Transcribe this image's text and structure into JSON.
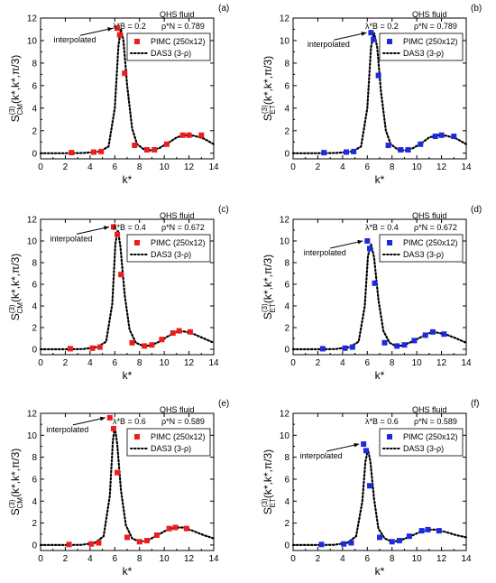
{
  "colors": {
    "red": "#ee1c1c",
    "blue": "#1c2bdd",
    "line": "#000000"
  },
  "figure": {
    "x_label": "k*",
    "annotation": "interpolated"
  },
  "chart_data": [
    {
      "type": "scatter",
      "panel": "(a)",
      "color": "red",
      "fluid_label": "QHS fluid",
      "lambda_text": "λ*B = 0.2",
      "rho_text": "ρ*N = 0.789",
      "ylabel_main": "S",
      "ylabel_sup": "(3)",
      "ylabel_sub": "CM",
      "ylabel_rest": "(k*,k*,π/3)",
      "xlabel": "k*",
      "xlim": [
        0,
        14
      ],
      "ylim": [
        -0.5,
        12
      ],
      "xticks": [
        0,
        2,
        4,
        6,
        8,
        10,
        12,
        14
      ],
      "yticks": [
        0,
        2,
        4,
        6,
        8,
        10,
        12
      ],
      "legend": "top-right",
      "series": [
        {
          "name": "PIMC (250x12)",
          "kind": "markers",
          "points": [
            [
              2.5,
              0.05
            ],
            [
              4.3,
              0.1
            ],
            [
              4.9,
              0.15
            ],
            [
              6.2,
              11.1
            ],
            [
              6.4,
              10.5
            ],
            [
              6.8,
              7.1
            ],
            [
              7.6,
              0.7
            ],
            [
              8.6,
              0.3
            ],
            [
              9.2,
              0.3
            ],
            [
              10.2,
              0.8
            ],
            [
              11.5,
              1.6
            ],
            [
              12.0,
              1.6
            ],
            [
              13.0,
              1.6
            ]
          ]
        },
        {
          "name": "DAS3 (3-ρ)",
          "kind": "dotted-line",
          "points": [
            [
              0,
              0
            ],
            [
              2,
              0
            ],
            [
              3.5,
              0.02
            ],
            [
              4.8,
              0.15
            ],
            [
              5.5,
              0.6
            ],
            [
              6.0,
              4.0
            ],
            [
              6.3,
              9.6
            ],
            [
              6.5,
              11.0
            ],
            [
              6.7,
              10.0
            ],
            [
              7.0,
              6.0
            ],
            [
              7.4,
              2.2
            ],
            [
              7.8,
              0.8
            ],
            [
              8.4,
              0.3
            ],
            [
              9.0,
              0.25
            ],
            [
              9.6,
              0.45
            ],
            [
              10.3,
              0.9
            ],
            [
              11.0,
              1.4
            ],
            [
              11.6,
              1.6
            ],
            [
              12.4,
              1.55
            ],
            [
              13.2,
              1.3
            ],
            [
              14.0,
              0.8
            ]
          ]
        }
      ]
    },
    {
      "type": "scatter",
      "panel": "(b)",
      "color": "blue",
      "fluid_label": "QHS fluid",
      "lambda_text": "λ*B = 0.2",
      "rho_text": "ρ*N = 0.789",
      "ylabel_main": "S",
      "ylabel_sup": "(3)",
      "ylabel_sub": "ET",
      "ylabel_rest": "(k*,k*,π/3)",
      "xlabel": "k*",
      "xlim": [
        0,
        14
      ],
      "ylim": [
        -0.5,
        12
      ],
      "xticks": [
        0,
        2,
        4,
        6,
        8,
        10,
        12,
        14
      ],
      "yticks": [
        0,
        2,
        4,
        6,
        8,
        10,
        12
      ],
      "legend": "top-right",
      "series": [
        {
          "name": "PIMC (250x12)",
          "kind": "markers",
          "points": [
            [
              2.5,
              0.05
            ],
            [
              4.3,
              0.1
            ],
            [
              4.9,
              0.15
            ],
            [
              6.3,
              10.7
            ],
            [
              6.5,
              10.1
            ],
            [
              6.9,
              6.9
            ],
            [
              7.7,
              0.7
            ],
            [
              8.7,
              0.3
            ],
            [
              9.3,
              0.3
            ],
            [
              10.3,
              0.8
            ],
            [
              11.5,
              1.5
            ],
            [
              12.0,
              1.6
            ],
            [
              13.0,
              1.5
            ]
          ]
        },
        {
          "name": "DAS3 (3-ρ)",
          "kind": "dotted-line",
          "points": [
            [
              0,
              0
            ],
            [
              2,
              0
            ],
            [
              3.5,
              0.02
            ],
            [
              4.8,
              0.15
            ],
            [
              5.5,
              0.6
            ],
            [
              6.0,
              4.0
            ],
            [
              6.3,
              9.4
            ],
            [
              6.55,
              10.7
            ],
            [
              6.8,
              9.4
            ],
            [
              7.1,
              5.5
            ],
            [
              7.5,
              2.0
            ],
            [
              7.9,
              0.8
            ],
            [
              8.5,
              0.3
            ],
            [
              9.1,
              0.25
            ],
            [
              9.7,
              0.45
            ],
            [
              10.4,
              0.9
            ],
            [
              11.0,
              1.4
            ],
            [
              11.7,
              1.6
            ],
            [
              12.4,
              1.55
            ],
            [
              13.2,
              1.3
            ],
            [
              14.0,
              0.8
            ]
          ]
        }
      ]
    },
    {
      "type": "scatter",
      "panel": "(c)",
      "color": "red",
      "fluid_label": "QHS fluid",
      "lambda_text": "λ*B = 0.4",
      "rho_text": "ρ*N = 0.672",
      "ylabel_main": "S",
      "ylabel_sup": "(3)",
      "ylabel_sub": "CM",
      "ylabel_rest": "(k*,k*,π/3)",
      "xlabel": "k*",
      "xlim": [
        0,
        14
      ],
      "ylim": [
        -0.5,
        12
      ],
      "xticks": [
        0,
        2,
        4,
        6,
        8,
        10,
        12,
        14
      ],
      "yticks": [
        0,
        2,
        4,
        6,
        8,
        10,
        12
      ],
      "legend": "top-right",
      "series": [
        {
          "name": "PIMC (250x12)",
          "kind": "markers",
          "points": [
            [
              2.4,
              0.05
            ],
            [
              4.2,
              0.1
            ],
            [
              4.8,
              0.2
            ],
            [
              5.9,
              11.3
            ],
            [
              6.2,
              10.6
            ],
            [
              6.5,
              6.9
            ],
            [
              7.4,
              0.6
            ],
            [
              8.4,
              0.3
            ],
            [
              9.0,
              0.4
            ],
            [
              9.8,
              0.9
            ],
            [
              10.7,
              1.5
            ],
            [
              11.2,
              1.7
            ],
            [
              12.1,
              1.6
            ]
          ]
        },
        {
          "name": "DAS3 (3-ρ)",
          "kind": "dotted-line",
          "points": [
            [
              0,
              0
            ],
            [
              2,
              0
            ],
            [
              3.4,
              0.02
            ],
            [
              4.6,
              0.2
            ],
            [
              5.3,
              0.7
            ],
            [
              5.8,
              4.2
            ],
            [
              6.05,
              9.8
            ],
            [
              6.25,
              11.0
            ],
            [
              6.45,
              9.5
            ],
            [
              6.8,
              5.0
            ],
            [
              7.2,
              1.8
            ],
            [
              7.7,
              0.6
            ],
            [
              8.3,
              0.3
            ],
            [
              8.9,
              0.35
            ],
            [
              9.6,
              0.7
            ],
            [
              10.3,
              1.2
            ],
            [
              11.0,
              1.6
            ],
            [
              11.6,
              1.65
            ],
            [
              12.4,
              1.4
            ],
            [
              13.2,
              1.0
            ],
            [
              14.0,
              0.6
            ]
          ]
        }
      ]
    },
    {
      "type": "scatter",
      "panel": "(d)",
      "color": "blue",
      "fluid_label": "QHS fluid",
      "lambda_text": "λ*B = 0.4",
      "rho_text": "ρ*N = 0.672",
      "ylabel_main": "S",
      "ylabel_sup": "(3)",
      "ylabel_sub": "ET",
      "ylabel_rest": "(k*,k*,π/3)",
      "xlabel": "k*",
      "xlim": [
        0,
        14
      ],
      "ylim": [
        -0.5,
        12
      ],
      "xticks": [
        0,
        2,
        4,
        6,
        8,
        10,
        12,
        14
      ],
      "yticks": [
        0,
        2,
        4,
        6,
        8,
        10,
        12
      ],
      "legend": "top-right",
      "series": [
        {
          "name": "PIMC (250x12)",
          "kind": "markers",
          "points": [
            [
              2.4,
              0.05
            ],
            [
              4.2,
              0.1
            ],
            [
              4.8,
              0.2
            ],
            [
              6.0,
              10.0
            ],
            [
              6.2,
              9.3
            ],
            [
              6.6,
              6.1
            ],
            [
              7.4,
              0.6
            ],
            [
              8.4,
              0.3
            ],
            [
              9.0,
              0.4
            ],
            [
              9.8,
              0.8
            ],
            [
              10.7,
              1.3
            ],
            [
              11.3,
              1.6
            ],
            [
              12.2,
              1.4
            ]
          ]
        },
        {
          "name": "DAS3 (3-ρ)",
          "kind": "dotted-line",
          "points": [
            [
              0,
              0
            ],
            [
              2,
              0
            ],
            [
              3.4,
              0.02
            ],
            [
              4.6,
              0.2
            ],
            [
              5.3,
              0.7
            ],
            [
              5.8,
              4.0
            ],
            [
              6.05,
              8.6
            ],
            [
              6.3,
              9.7
            ],
            [
              6.55,
              8.5
            ],
            [
              6.9,
              4.6
            ],
            [
              7.3,
              1.7
            ],
            [
              7.8,
              0.6
            ],
            [
              8.3,
              0.3
            ],
            [
              8.9,
              0.35
            ],
            [
              9.6,
              0.7
            ],
            [
              10.3,
              1.1
            ],
            [
              11.0,
              1.5
            ],
            [
              11.6,
              1.55
            ],
            [
              12.4,
              1.35
            ],
            [
              13.2,
              1.0
            ],
            [
              14.0,
              0.6
            ]
          ]
        }
      ]
    },
    {
      "type": "scatter",
      "panel": "(e)",
      "color": "red",
      "fluid_label": "QHS fluid",
      "lambda_text": "λ*B = 0.6",
      "rho_text": "ρ*N = 0.589",
      "ylabel_main": "S",
      "ylabel_sup": "(3)",
      "ylabel_sub": "CM",
      "ylabel_rest": "(k*,k*,π/3)",
      "xlabel": "k*",
      "xlim": [
        0,
        14
      ],
      "ylim": [
        -0.5,
        12
      ],
      "xticks": [
        0,
        2,
        4,
        6,
        8,
        10,
        12,
        14
      ],
      "yticks": [
        0,
        2,
        4,
        6,
        8,
        10,
        12
      ],
      "legend": "top-right",
      "series": [
        {
          "name": "PIMC (250x12)",
          "kind": "markers",
          "points": [
            [
              2.3,
              0.05
            ],
            [
              4.1,
              0.1
            ],
            [
              4.7,
              0.2
            ],
            [
              5.6,
              11.6
            ],
            [
              5.9,
              10.6
            ],
            [
              6.2,
              6.6
            ],
            [
              7.0,
              0.7
            ],
            [
              8.0,
              0.3
            ],
            [
              8.6,
              0.4
            ],
            [
              9.4,
              0.9
            ],
            [
              10.4,
              1.5
            ],
            [
              10.9,
              1.6
            ],
            [
              11.8,
              1.5
            ]
          ]
        },
        {
          "name": "DAS3 (3-ρ)",
          "kind": "dotted-line",
          "points": [
            [
              0,
              0
            ],
            [
              2,
              0
            ],
            [
              3.3,
              0.02
            ],
            [
              4.4,
              0.2
            ],
            [
              5.1,
              0.8
            ],
            [
              5.6,
              4.5
            ],
            [
              5.85,
              9.5
            ],
            [
              6.0,
              10.8
            ],
            [
              6.2,
              9.2
            ],
            [
              6.5,
              5.0
            ],
            [
              6.9,
              1.8
            ],
            [
              7.4,
              0.6
            ],
            [
              8.0,
              0.3
            ],
            [
              8.6,
              0.4
            ],
            [
              9.3,
              0.8
            ],
            [
              10.1,
              1.3
            ],
            [
              10.8,
              1.6
            ],
            [
              11.5,
              1.6
            ],
            [
              12.3,
              1.3
            ],
            [
              13.2,
              0.9
            ],
            [
              14.0,
              0.6
            ]
          ]
        }
      ]
    },
    {
      "type": "scatter",
      "panel": "(f)",
      "color": "blue",
      "fluid_label": "QHS fluid",
      "lambda_text": "λ*B = 0.6",
      "rho_text": "ρ*N = 0.589",
      "ylabel_main": "S",
      "ylabel_sup": "(3)",
      "ylabel_sub": "ET",
      "ylabel_rest": "(k*,k*,π/3)",
      "xlabel": "k*",
      "xlim": [
        0,
        14
      ],
      "ylim": [
        -0.5,
        12
      ],
      "xticks": [
        0,
        2,
        4,
        6,
        8,
        10,
        12,
        14
      ],
      "yticks": [
        0,
        2,
        4,
        6,
        8,
        10,
        12
      ],
      "legend": "top-right",
      "series": [
        {
          "name": "PIMC (250x12)",
          "kind": "markers",
          "points": [
            [
              2.3,
              0.05
            ],
            [
              4.1,
              0.1
            ],
            [
              4.7,
              0.2
            ],
            [
              5.7,
              9.2
            ],
            [
              5.9,
              8.6
            ],
            [
              6.2,
              5.4
            ],
            [
              7.0,
              0.7
            ],
            [
              8.0,
              0.3
            ],
            [
              8.6,
              0.4
            ],
            [
              9.4,
              0.8
            ],
            [
              10.4,
              1.3
            ],
            [
              10.9,
              1.4
            ],
            [
              11.8,
              1.3
            ]
          ]
        },
        {
          "name": "DAS3 (3-ρ)",
          "kind": "dotted-line",
          "points": [
            [
              0,
              0
            ],
            [
              2,
              0
            ],
            [
              3.3,
              0.02
            ],
            [
              4.4,
              0.2
            ],
            [
              5.1,
              0.8
            ],
            [
              5.6,
              4.0
            ],
            [
              5.85,
              7.6
            ],
            [
              6.05,
              8.7
            ],
            [
              6.25,
              7.6
            ],
            [
              6.55,
              4.2
            ],
            [
              6.9,
              1.5
            ],
            [
              7.4,
              0.6
            ],
            [
              8.0,
              0.3
            ],
            [
              8.6,
              0.4
            ],
            [
              9.3,
              0.7
            ],
            [
              10.1,
              1.1
            ],
            [
              10.8,
              1.4
            ],
            [
              11.5,
              1.4
            ],
            [
              12.3,
              1.2
            ],
            [
              13.2,
              0.9
            ],
            [
              14.0,
              0.7
            ]
          ]
        }
      ]
    }
  ]
}
